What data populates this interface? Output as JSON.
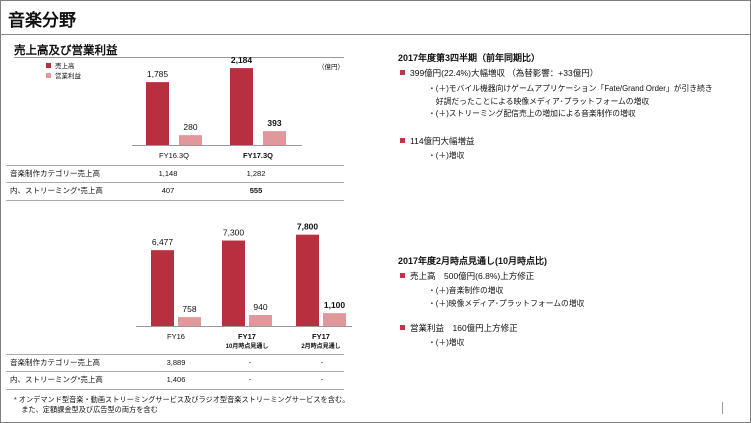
{
  "page_title": "音楽分野",
  "section1": {
    "subtitle": "売上高及び営業利益",
    "unit": "（億円）",
    "legend": [
      {
        "label": "売上高",
        "color": "#b8303f"
      },
      {
        "label": "営業利益",
        "color": "#e0989c"
      }
    ]
  },
  "chart_data": [
    {
      "type": "bar",
      "categories": [
        "FY16.3Q",
        "FY17.3Q"
      ],
      "series": [
        {
          "name": "売上高",
          "color": "#b8303f",
          "values": [
            1785,
            2184
          ],
          "labels": [
            "1,785",
            "2,184"
          ]
        },
        {
          "name": "営業利益",
          "color": "#e0989c",
          "values": [
            280,
            393
          ],
          "labels": [
            "280",
            "393"
          ]
        }
      ],
      "title": "売上高及び営業利益",
      "ylabel": "（億円）",
      "ylim": [
        0,
        2300
      ],
      "grid": false,
      "legend_position": "top-left"
    },
    {
      "type": "bar",
      "categories": [
        "FY16",
        "FY17 10月時点見通し",
        "FY17 2月時点見通し"
      ],
      "category_lines": [
        [
          "FY16"
        ],
        [
          "FY17",
          "10月時点見通し"
        ],
        [
          "FY17",
          "2月時点見通し"
        ]
      ],
      "series": [
        {
          "name": "売上高",
          "color": "#b8303f",
          "values": [
            6477,
            7300,
            7800
          ],
          "labels": [
            "6,477",
            "7,300",
            "7,800"
          ]
        },
        {
          "name": "営業利益",
          "color": "#e0989c",
          "values": [
            758,
            940,
            1100
          ],
          "labels": [
            "758",
            "940",
            "1,100"
          ]
        }
      ],
      "ylim": [
        0,
        8200
      ],
      "grid": false
    }
  ],
  "table1": {
    "rows": [
      {
        "label": "音楽制作カテゴリー売上高",
        "values": [
          "1,148",
          "1,282"
        ]
      },
      {
        "label": "内、ストリーミング*売上高",
        "values": [
          "407",
          "555"
        ]
      }
    ]
  },
  "table2": {
    "rows": [
      {
        "label": "音楽制作カテゴリー売上高",
        "values": [
          "3,889",
          "-",
          "-"
        ]
      },
      {
        "label": "内、ストリーミング*売上高",
        "values": [
          "1,406",
          "-",
          "-"
        ]
      }
    ]
  },
  "panel1": {
    "title": "2017年度第3四半期（前年同期比）",
    "bullets": [
      {
        "text": "399億円(22.4%)大幅増収 （為替影響：+33億円）",
        "sub": [
          "・(＋)モバイル機器向けゲームアプリケーション「Fate/Grand Order」が引き続き",
          "　好調だったことによる映像メディア･プラットフォームの増収",
          "・(＋)ストリーミング配信売上の増加による音楽制作の増収"
        ]
      },
      {
        "text": "114億円大幅増益",
        "sub": [
          "・(＋)増収"
        ]
      }
    ]
  },
  "panel2": {
    "title": "2017年度2月時点見通し(10月時点比)",
    "bullets": [
      {
        "text": "売上高　500億円(6.8%)上方修正",
        "sub": [
          "・(＋)音楽制作の増収",
          "・(＋)映像メディア･プラットフォームの増収"
        ]
      },
      {
        "text": "営業利益　160億円上方修正",
        "sub": [
          "・(＋)増収"
        ]
      }
    ]
  },
  "footnote": [
    "* オンデマンド型音楽・動画ストリーミングサービス及びラジオ型音楽ストリーミングサービスを含む。",
    "　また、定額課金型及び広告型の両方を含む"
  ]
}
